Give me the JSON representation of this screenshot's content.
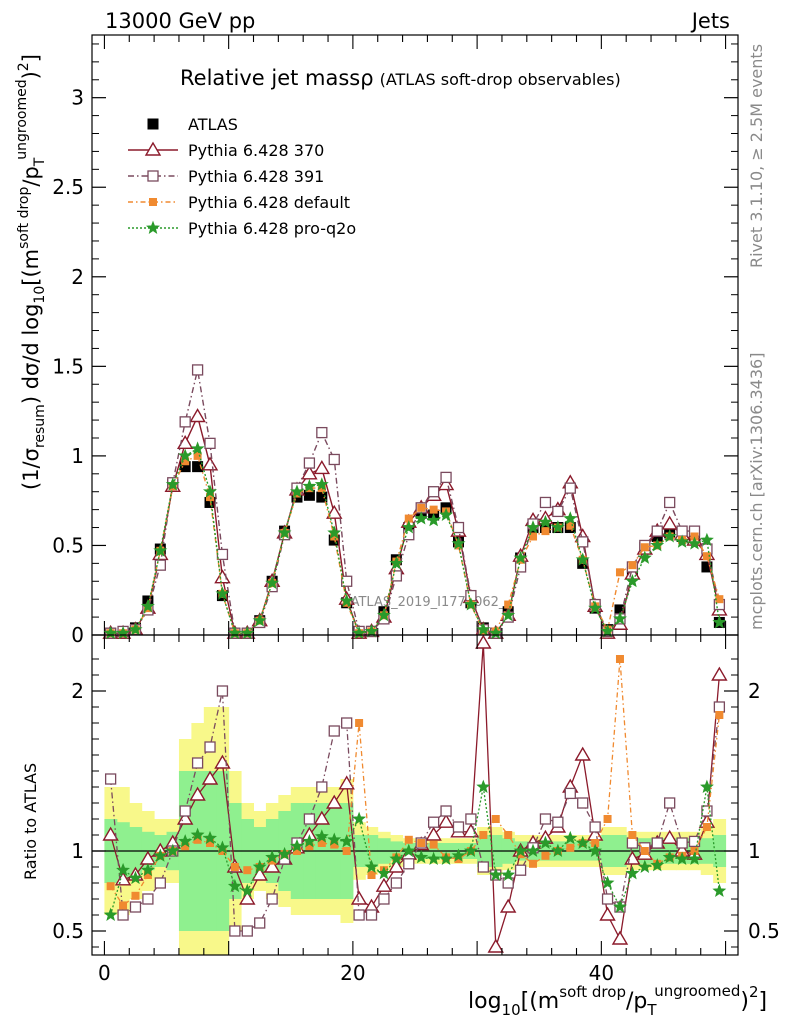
{
  "header": {
    "energy_label": "13000 GeV pp",
    "process_label": "Jets",
    "rivet_label": "Rivet 3.1.10, ≥ 2.5M events",
    "mcplots_label": "mcplots.cern.ch [arXiv:1306.3436]",
    "analysis_watermark": "ATLAS_2019_I1772062_"
  },
  "colors": {
    "data": "#000000",
    "pythia_370": "#8b1a2b",
    "pythia_391": "#7a4a5e",
    "pythia_default": "#f08a30",
    "pythia_proq2o": "#2a9a2a",
    "band_inner": "#8ff08f",
    "band_outer": "#f8f88a"
  },
  "chart_data": [
    {
      "type": "line",
      "panel": "main",
      "title": "Relative jet massρ",
      "subtitle": "(ATLAS soft-drop observables)",
      "ylabel_main": "(1/σ",
      "ylabel_sub": "resum",
      "ylabel_rest": ") dσ/d log",
      "ylabel_sub2": "10",
      "ylabel_tail": "[(m",
      "ylabel_sup": "soft drop",
      "ylabel_tail2": "/p",
      "ylabel_sub3": "T",
      "ylabel_sup2": "ungroomed",
      "ylabel_tail3": ")",
      "ylabel_sup3": "2",
      "ylabel_tail4": "]",
      "xlim": [
        -1,
        51
      ],
      "ylim": [
        0,
        3.35
      ],
      "yticks": [
        0,
        0.5,
        1,
        1.5,
        2,
        2.5,
        3
      ],
      "ytick_labels": [
        "0",
        "0.5",
        "1",
        "1.5",
        "2",
        "2.5",
        "3"
      ],
      "legend_position": "top-left",
      "x": [
        0.5,
        1.5,
        2.5,
        3.5,
        4.5,
        5.5,
        6.5,
        7.5,
        8.5,
        9.5,
        10.5,
        11.5,
        12.5,
        13.5,
        14.5,
        15.5,
        16.5,
        17.5,
        18.5,
        19.5,
        20.5,
        21.5,
        22.5,
        23.5,
        24.5,
        25.5,
        26.5,
        27.5,
        28.5,
        29.5,
        30.5,
        31.5,
        32.5,
        33.5,
        34.5,
        35.5,
        36.5,
        37.5,
        38.5,
        39.5,
        40.5,
        41.5,
        42.5,
        43.5,
        44.5,
        45.5,
        46.5,
        47.5,
        48.5,
        49.5
      ],
      "series": [
        {
          "name": "ATLAS",
          "key": "data",
          "values": [
            0.01,
            0.01,
            0.04,
            0.19,
            0.48,
            0.84,
            0.94,
            0.94,
            0.74,
            0.22,
            0.01,
            0.01,
            0.08,
            0.3,
            0.58,
            0.77,
            0.78,
            0.77,
            0.53,
            0.18,
            0.01,
            0.02,
            0.13,
            0.42,
            0.6,
            0.68,
            0.67,
            0.71,
            0.52,
            0.18,
            0.04,
            0.01,
            0.13,
            0.43,
            0.6,
            0.6,
            0.6,
            0.6,
            0.4,
            0.15,
            0.03,
            0.14,
            0.35,
            0.49,
            0.55,
            0.57,
            0.55,
            0.54,
            0.38,
            0.07
          ]
        },
        {
          "name": "Pythia 6.428 370",
          "key": "pythia_370",
          "values": [
            0.01,
            0.01,
            0.03,
            0.15,
            0.45,
            0.83,
            1.07,
            1.22,
            0.95,
            0.32,
            0.01,
            0.01,
            0.08,
            0.3,
            0.57,
            0.81,
            0.9,
            0.93,
            0.68,
            0.2,
            0.01,
            0.02,
            0.1,
            0.37,
            0.63,
            0.71,
            0.78,
            0.84,
            0.58,
            0.21,
            0.03,
            0.01,
            0.11,
            0.44,
            0.64,
            0.65,
            0.7,
            0.85,
            0.55,
            0.16,
            0.01,
            0.06,
            0.34,
            0.48,
            0.58,
            0.62,
            0.56,
            0.53,
            0.45,
            0.14
          ]
        },
        {
          "name": "Pythia 6.428 391",
          "key": "pythia_391",
          "values": [
            0.01,
            0.02,
            0.03,
            0.14,
            0.39,
            0.85,
            1.19,
            1.48,
            1.07,
            0.45,
            0.01,
            0.01,
            0.07,
            0.27,
            0.56,
            0.82,
            0.96,
            1.13,
            0.98,
            0.3,
            0.02,
            0.02,
            0.09,
            0.33,
            0.56,
            0.71,
            0.8,
            0.88,
            0.6,
            0.22,
            0.03,
            0.01,
            0.1,
            0.38,
            0.62,
            0.74,
            0.69,
            0.82,
            0.52,
            0.17,
            0.02,
            0.09,
            0.38,
            0.5,
            0.58,
            0.74,
            0.58,
            0.58,
            0.48,
            0.17
          ]
        },
        {
          "name": "Pythia 6.428 default",
          "key": "pythia_default",
          "values": [
            0.01,
            0.01,
            0.03,
            0.15,
            0.47,
            0.83,
            0.97,
            1.0,
            0.77,
            0.23,
            0.01,
            0.01,
            0.08,
            0.29,
            0.57,
            0.79,
            0.82,
            0.82,
            0.55,
            0.18,
            0.01,
            0.02,
            0.11,
            0.41,
            0.65,
            0.71,
            0.7,
            0.69,
            0.5,
            0.17,
            0.02,
            0.02,
            0.17,
            0.42,
            0.55,
            0.58,
            0.6,
            0.61,
            0.42,
            0.16,
            0.03,
            0.35,
            0.39,
            0.49,
            0.5,
            0.55,
            0.53,
            0.55,
            0.44,
            0.2
          ]
        },
        {
          "name": "Pythia 6.428 pro-q2o",
          "key": "pythia_proq2o",
          "values": [
            0.01,
            0.01,
            0.03,
            0.16,
            0.47,
            0.84,
            1.0,
            1.04,
            0.8,
            0.23,
            0.01,
            0.01,
            0.08,
            0.29,
            0.57,
            0.8,
            0.83,
            0.84,
            0.57,
            0.19,
            0.01,
            0.02,
            0.11,
            0.4,
            0.6,
            0.65,
            0.64,
            0.67,
            0.51,
            0.17,
            0.03,
            0.01,
            0.11,
            0.43,
            0.6,
            0.63,
            0.6,
            0.65,
            0.42,
            0.15,
            0.02,
            0.09,
            0.3,
            0.43,
            0.5,
            0.55,
            0.52,
            0.51,
            0.53,
            0.07
          ]
        }
      ]
    },
    {
      "type": "line",
      "panel": "ratio",
      "ylabel": "Ratio to ATLAS",
      "xlabel_main": "log",
      "xlabel_sub": "10",
      "xlabel_tail": "[(m",
      "xlabel_sup": "soft drop",
      "xlabel_tail2": "/p",
      "xlabel_sub2": "T",
      "xlabel_sup2": "ungroomed",
      "xlabel_tail3": ")",
      "xlabel_sup3": "2",
      "xlabel_tail4": "]",
      "xlim": [
        -1,
        51
      ],
      "ylim": [
        0.35,
        2.35
      ],
      "yticks": [
        0.5,
        1,
        2
      ],
      "ytick_labels": [
        "0.5",
        "1",
        "2"
      ],
      "xticks": [
        0,
        20,
        40
      ],
      "xtick_labels": [
        "0",
        "20",
        "40"
      ],
      "reference_line": 1,
      "band_inner": [
        0.2,
        0.18,
        0.15,
        0.12,
        0.1,
        0.12,
        0.5,
        0.5,
        0.5,
        0.5,
        0.3,
        0.2,
        0.15,
        0.2,
        0.25,
        0.3,
        0.3,
        0.3,
        0.3,
        0.3,
        0.1,
        0.1,
        0.08,
        0.06,
        0.05,
        0.05,
        0.05,
        0.05,
        0.05,
        0.05,
        0.1,
        0.1,
        0.08,
        0.06,
        0.06,
        0.06,
        0.06,
        0.06,
        0.06,
        0.06,
        0.1,
        0.1,
        0.08,
        0.08,
        0.08,
        0.08,
        0.08,
        0.08,
        0.08,
        0.1
      ],
      "band_outer": [
        0.4,
        0.4,
        0.3,
        0.25,
        0.2,
        0.2,
        0.7,
        0.8,
        0.9,
        0.9,
        0.5,
        0.3,
        0.25,
        0.3,
        0.35,
        0.4,
        0.4,
        0.4,
        0.4,
        0.45,
        0.18,
        0.15,
        0.12,
        0.1,
        0.08,
        0.08,
        0.08,
        0.08,
        0.08,
        0.08,
        0.15,
        0.15,
        0.12,
        0.1,
        0.1,
        0.1,
        0.1,
        0.1,
        0.1,
        0.1,
        0.15,
        0.15,
        0.12,
        0.12,
        0.12,
        0.12,
        0.12,
        0.12,
        0.15,
        0.2
      ],
      "series": [
        {
          "name": "Pythia 6.428 370",
          "key": "pythia_370",
          "values": [
            1.1,
            0.82,
            0.85,
            0.95,
            1.0,
            1.05,
            1.2,
            1.35,
            1.45,
            1.55,
            0.9,
            0.7,
            0.85,
            0.9,
            0.95,
            1.02,
            1.1,
            1.2,
            1.3,
            1.42,
            0.7,
            0.65,
            0.78,
            0.9,
            0.98,
            1.04,
            1.1,
            1.18,
            1.12,
            1.12,
            2.3,
            0.4,
            0.65,
            1.0,
            1.05,
            1.08,
            1.15,
            1.4,
            1.6,
            1.1,
            0.6,
            0.45,
            0.95,
            0.98,
            1.05,
            1.08,
            1.0,
            0.98,
            1.18,
            2.1
          ]
        },
        {
          "name": "Pythia 6.428 391",
          "key": "pythia_391",
          "values": [
            1.45,
            0.6,
            0.65,
            0.7,
            0.8,
            1.0,
            1.25,
            1.55,
            1.65,
            2.0,
            0.5,
            0.5,
            0.55,
            0.7,
            0.95,
            1.05,
            1.2,
            1.4,
            1.75,
            1.8,
            0.6,
            0.6,
            0.7,
            0.8,
            0.92,
            1.05,
            1.18,
            1.25,
            1.15,
            1.2,
            0.9,
            0.85,
            0.8,
            0.88,
            1.02,
            1.2,
            1.18,
            1.36,
            1.3,
            1.15,
            0.7,
            0.65,
            1.05,
            1.02,
            1.05,
            1.3,
            1.05,
            1.06,
            1.25,
            1.9
          ]
        },
        {
          "name": "Pythia 6.428 default",
          "key": "pythia_default",
          "values": [
            0.78,
            0.66,
            0.72,
            0.85,
            0.97,
            1.0,
            1.03,
            1.07,
            1.05,
            1.0,
            0.9,
            0.88,
            0.9,
            0.94,
            0.98,
            1.0,
            1.03,
            1.05,
            1.04,
            1.0,
            1.8,
            0.85,
            0.88,
            0.96,
            1.07,
            1.05,
            1.04,
            0.96,
            0.95,
            1.0,
            1.1,
            1.2,
            1.1,
            0.98,
            0.92,
            0.97,
            1.0,
            1.02,
            1.05,
            1.05,
            1.2,
            2.2,
            1.1,
            1.0,
            0.92,
            0.96,
            0.97,
            1.0,
            1.15,
            1.85
          ]
        },
        {
          "name": "Pythia 6.428 pro-q2o",
          "key": "pythia_proq2o",
          "values": [
            0.6,
            0.88,
            0.83,
            0.88,
            0.97,
            1.0,
            1.06,
            1.1,
            1.08,
            1.02,
            0.78,
            0.75,
            0.9,
            0.96,
            0.98,
            1.03,
            1.06,
            1.09,
            1.07,
            1.06,
            1.2,
            0.9,
            0.86,
            0.95,
            1.0,
            0.96,
            0.95,
            0.95,
            0.97,
            1.0,
            1.4,
            0.85,
            0.85,
            1.0,
            1.0,
            1.05,
            1.0,
            1.08,
            1.05,
            1.0,
            0.8,
            0.65,
            0.86,
            0.9,
            0.91,
            0.96,
            0.95,
            0.95,
            1.4,
            0.75
          ]
        }
      ]
    }
  ]
}
